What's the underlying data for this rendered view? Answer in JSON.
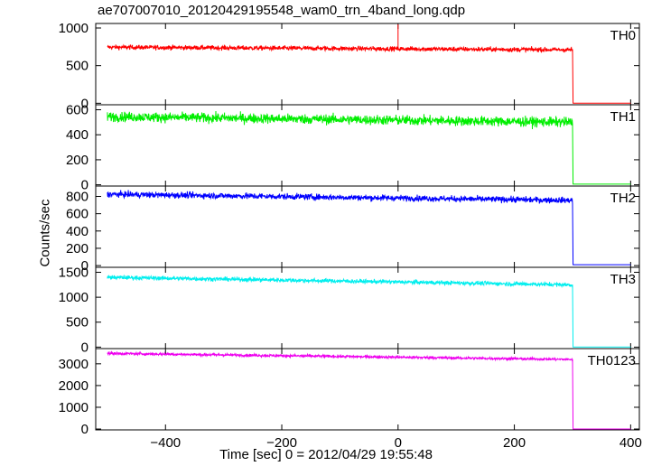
{
  "chart_data": {
    "type": "line",
    "title": "ae707007010_20120429195548_wam0_trn_4band_long.qdp",
    "xlabel": "Time [sec] 0 = 2012/04/29 19:55:48",
    "ylabel": "Counts/sec",
    "xlim": [
      -520,
      415
    ],
    "xticks": [
      -400,
      -200,
      0,
      200,
      400
    ],
    "xtick_labels": [
      "−400",
      "−200",
      "0",
      "200",
      "400"
    ],
    "t_start": -500,
    "t_drop": 300,
    "t_end": 400,
    "panels": [
      {
        "name": "TH0",
        "color": "#ff0000",
        "ylim": [
          -20,
          1060
        ],
        "yticks": [
          0,
          500,
          1000
        ],
        "ytick_labels": [
          "0",
          "500",
          "1000"
        ],
        "level_start": 745,
        "level_end": 710,
        "noise": 22,
        "after": 2,
        "spikes": [
          {
            "t": 0,
            "v": 1060
          }
        ]
      },
      {
        "name": "TH1",
        "color": "#00ee00",
        "ylim": [
          -10,
          640
        ],
        "yticks": [
          0,
          200,
          400,
          600
        ],
        "ytick_labels": [
          "0",
          "200",
          "400",
          "600"
        ],
        "level_start": 545,
        "level_end": 500,
        "noise": 28,
        "after": 5,
        "spikes": []
      },
      {
        "name": "TH2",
        "color": "#0000ff",
        "ylim": [
          -20,
          920
        ],
        "yticks": [
          0,
          200,
          400,
          600,
          800
        ],
        "ytick_labels": [
          "0",
          "200",
          "400",
          "600",
          "800"
        ],
        "level_start": 825,
        "level_end": 755,
        "noise": 25,
        "after": 10,
        "spikes": []
      },
      {
        "name": "TH3",
        "color": "#00eeee",
        "ylim": [
          -30,
          1600
        ],
        "yticks": [
          0,
          500,
          1000,
          1500
        ],
        "ytick_labels": [
          "0",
          "500",
          "1000",
          "1500"
        ],
        "level_start": 1400,
        "level_end": 1250,
        "noise": 30,
        "after": 0,
        "spikes": []
      },
      {
        "name": "TH0123",
        "color": "#ee00ee",
        "ylim": [
          -40,
          3700
        ],
        "yticks": [
          0,
          1000,
          2000,
          3000
        ],
        "ytick_labels": [
          "0",
          "1000",
          "2000",
          "3000"
        ],
        "level_start": 3480,
        "level_end": 3200,
        "noise": 45,
        "after": 0,
        "spikes": []
      }
    ]
  }
}
